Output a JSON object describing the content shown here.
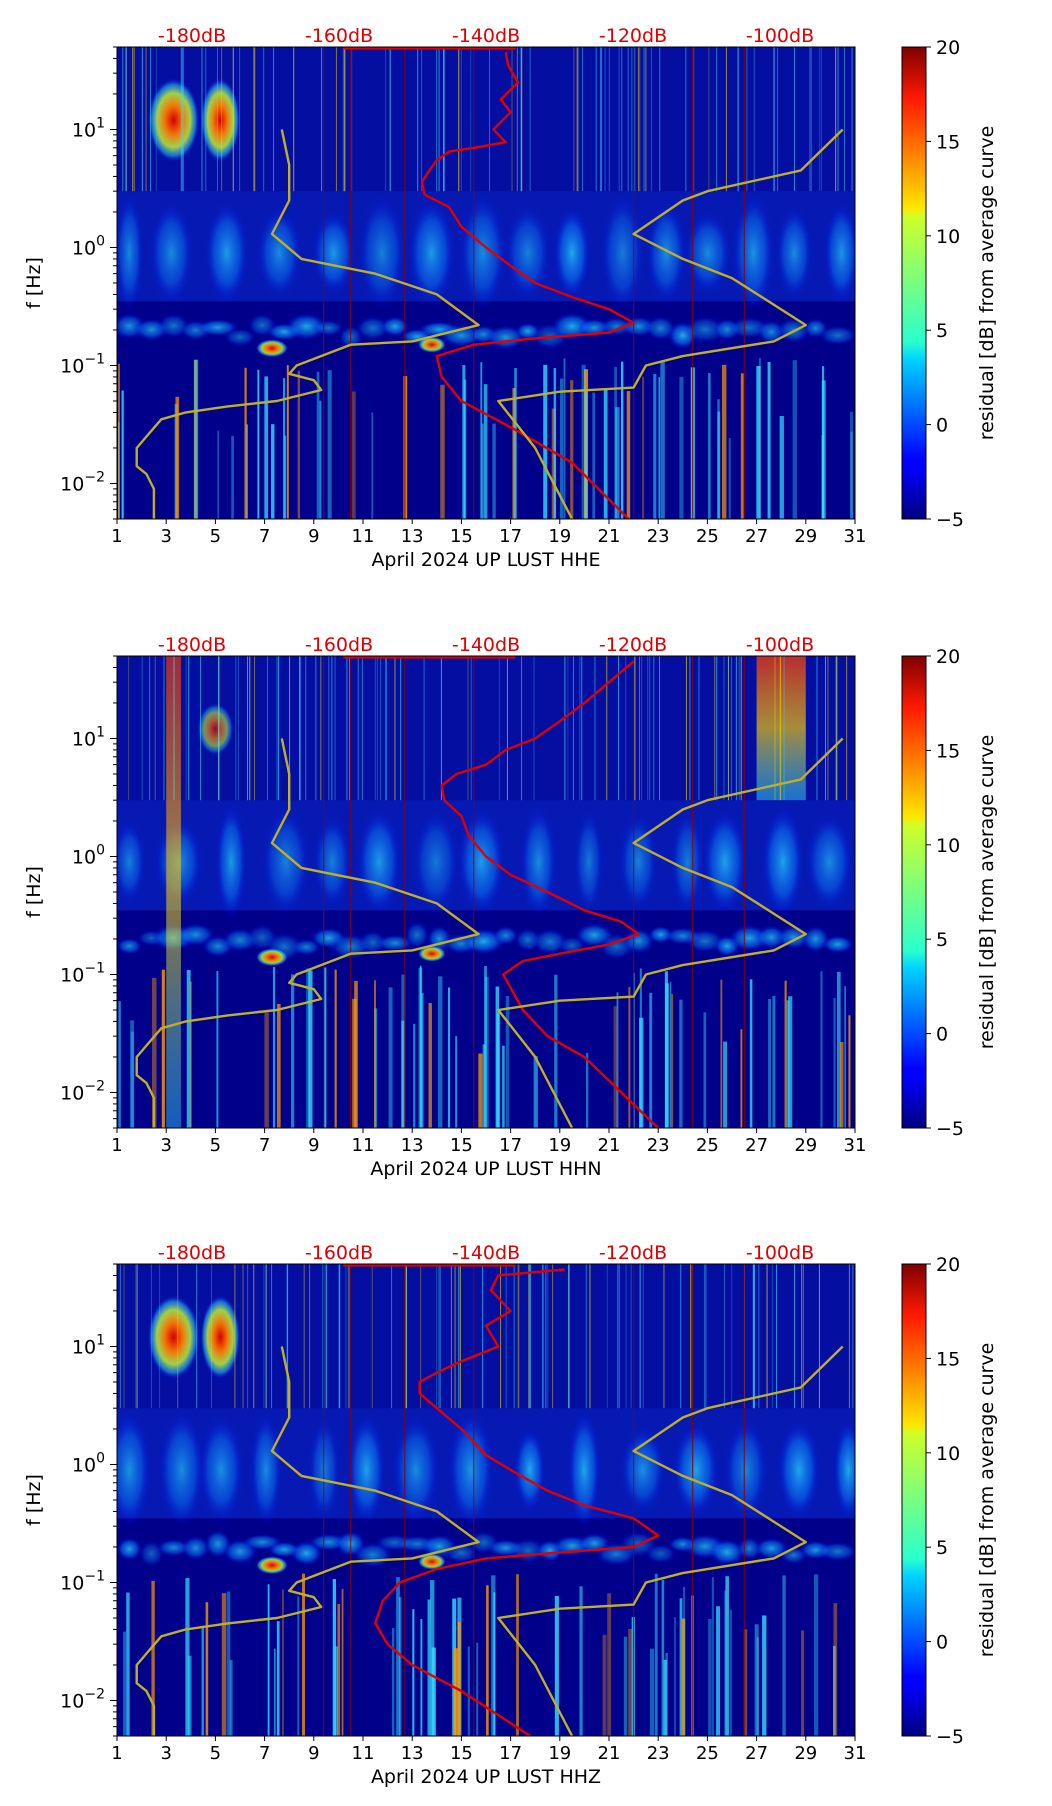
{
  "figure": {
    "colorbar_label": "residual [dB] from average curve",
    "ylabel": "f [Hz]"
  },
  "chart_data": [
    {
      "type": "heatmap",
      "xlabel": "April 2024 UP LUST  HHE",
      "ylabel": "f [Hz]",
      "x_ticks": [
        "1",
        "3",
        "5",
        "7",
        "9",
        "11",
        "13",
        "15",
        "17",
        "19",
        "21",
        "23",
        "25",
        "27",
        "29",
        "31"
      ],
      "xlim": [
        1,
        31
      ],
      "y_ticks": [
        {
          "base": "10",
          "exp": "1",
          "value": 10
        },
        {
          "base": "10",
          "exp": "0",
          "value": 1
        },
        {
          "base": "10",
          "exp": "−1",
          "value": 0.1
        },
        {
          "base": "10",
          "exp": "−2",
          "value": 0.01
        }
      ],
      "ylim": [
        0.005,
        50
      ],
      "y_scale": "log",
      "top_axis_labels": [
        "-180dB",
        "-160dB",
        "-140dB",
        "-120dB",
        "-100dB"
      ],
      "top_axis_color": "#e00000",
      "colorbar": {
        "ticks": [
          "−5",
          "0",
          "5",
          "10",
          "15",
          "20"
        ],
        "range": [
          -5,
          20
        ],
        "label": "residual [dB] from average curve",
        "colormap": "jet"
      },
      "series": [
        {
          "color": "#e00000",
          "points": [
            [
              16.8,
              45
            ],
            [
              16.9,
              35
            ],
            [
              17.3,
              25
            ],
            [
              16.6,
              18
            ],
            [
              17.0,
              14
            ],
            [
              16.3,
              10
            ],
            [
              16.8,
              7.8
            ],
            [
              15.5,
              7
            ],
            [
              14.5,
              6.5
            ],
            [
              14.0,
              5.5
            ],
            [
              13.7,
              4.5
            ],
            [
              13.4,
              3.6
            ],
            [
              13.5,
              2.8
            ],
            [
              14.5,
              2.2
            ],
            [
              15.0,
              1.5
            ],
            [
              16.0,
              1.0
            ],
            [
              17.0,
              0.7
            ],
            [
              18.0,
              0.5
            ],
            [
              19.5,
              0.38
            ],
            [
              21.0,
              0.3
            ],
            [
              22.0,
              0.23
            ],
            [
              21.0,
              0.19
            ],
            [
              18.0,
              0.17
            ],
            [
              15.5,
              0.15
            ],
            [
              14.0,
              0.12
            ],
            [
              14.2,
              0.08
            ],
            [
              15.0,
              0.05
            ],
            [
              17.0,
              0.03
            ],
            [
              19.5,
              0.015
            ],
            [
              21.8,
              0.005
            ]
          ]
        },
        {
          "color": "#bfb02a",
          "points": [
            [
              7.7,
              10
            ],
            [
              8.0,
              5
            ],
            [
              8.0,
              2.5
            ],
            [
              7.3,
              1.3
            ],
            [
              8.5,
              0.8
            ],
            [
              11.5,
              0.6
            ],
            [
              14.0,
              0.4
            ],
            [
              15.7,
              0.22
            ],
            [
              13.0,
              0.16
            ],
            [
              10.5,
              0.15
            ],
            [
              8.3,
              0.1
            ],
            [
              8.0,
              0.085
            ],
            [
              9.0,
              0.075
            ],
            [
              9.3,
              0.062
            ],
            [
              7.5,
              0.05
            ],
            [
              5.5,
              0.045
            ],
            [
              3.8,
              0.04
            ],
            [
              2.8,
              0.035
            ],
            [
              2.2,
              0.025
            ],
            [
              1.8,
              0.02
            ],
            [
              1.8,
              0.014
            ],
            [
              2.2,
              0.012
            ],
            [
              2.5,
              0.009
            ],
            [
              2.5,
              0.005
            ]
          ]
        },
        {
          "color": "#bfb02a",
          "points": [
            [
              30.5,
              10
            ],
            [
              28.8,
              4.5
            ],
            [
              25.0,
              3
            ],
            [
              24.0,
              2.5
            ],
            [
              22.0,
              1.3
            ],
            [
              24.0,
              0.8
            ],
            [
              26.0,
              0.55
            ],
            [
              29.0,
              0.22
            ],
            [
              27.7,
              0.16
            ],
            [
              24.0,
              0.12
            ],
            [
              22.5,
              0.1
            ],
            [
              22.0,
              0.065
            ],
            [
              19.0,
              0.06
            ],
            [
              16.5,
              0.05
            ],
            [
              18.0,
              0.02
            ],
            [
              19.5,
              0.005
            ]
          ]
        }
      ]
    },
    {
      "type": "heatmap",
      "xlabel": "April 2024 UP LUST  HHN",
      "ylabel": "f [Hz]",
      "x_ticks": [
        "1",
        "3",
        "5",
        "7",
        "9",
        "11",
        "13",
        "15",
        "17",
        "19",
        "21",
        "23",
        "25",
        "27",
        "29",
        "31"
      ],
      "xlim": [
        1,
        31
      ],
      "y_ticks": [
        {
          "base": "10",
          "exp": "1",
          "value": 10
        },
        {
          "base": "10",
          "exp": "0",
          "value": 1
        },
        {
          "base": "10",
          "exp": "−1",
          "value": 0.1
        },
        {
          "base": "10",
          "exp": "−2",
          "value": 0.01
        }
      ],
      "ylim": [
        0.005,
        50
      ],
      "y_scale": "log",
      "top_axis_labels": [
        "-180dB",
        "-160dB",
        "-140dB",
        "-120dB",
        "-100dB"
      ],
      "top_axis_color": "#e00000",
      "colorbar": {
        "ticks": [
          "−5",
          "0",
          "5",
          "10",
          "15",
          "20"
        ],
        "range": [
          -5,
          20
        ],
        "label": "residual [dB] from average curve",
        "colormap": "jet"
      },
      "series": [
        {
          "color": "#e00000",
          "points": [
            [
              22.0,
              45
            ],
            [
              21.0,
              30
            ],
            [
              20.0,
              20
            ],
            [
              19.0,
              14
            ],
            [
              18.0,
              10
            ],
            [
              16.8,
              8
            ],
            [
              16.0,
              6
            ],
            [
              14.8,
              5
            ],
            [
              14.2,
              4
            ],
            [
              14.3,
              3
            ],
            [
              15.0,
              2.2
            ],
            [
              15.3,
              1.5
            ],
            [
              16.0,
              1.0
            ],
            [
              17.0,
              0.7
            ],
            [
              18.5,
              0.5
            ],
            [
              20.0,
              0.35
            ],
            [
              21.5,
              0.28
            ],
            [
              22.2,
              0.22
            ],
            [
              21.0,
              0.18
            ],
            [
              19.0,
              0.15
            ],
            [
              17.5,
              0.13
            ],
            [
              16.7,
              0.1
            ],
            [
              17.5,
              0.05
            ],
            [
              18.5,
              0.03
            ],
            [
              20.0,
              0.02
            ],
            [
              23.0,
              0.005
            ]
          ]
        },
        {
          "color": "#bfb02a",
          "points": [
            [
              7.7,
              10
            ],
            [
              8.0,
              5
            ],
            [
              8.0,
              2.5
            ],
            [
              7.3,
              1.3
            ],
            [
              8.5,
              0.8
            ],
            [
              11.5,
              0.6
            ],
            [
              14.0,
              0.4
            ],
            [
              15.7,
              0.22
            ],
            [
              13.0,
              0.16
            ],
            [
              10.5,
              0.15
            ],
            [
              8.3,
              0.1
            ],
            [
              8.0,
              0.085
            ],
            [
              9.0,
              0.075
            ],
            [
              9.3,
              0.062
            ],
            [
              7.5,
              0.05
            ],
            [
              5.5,
              0.045
            ],
            [
              3.8,
              0.04
            ],
            [
              2.8,
              0.035
            ],
            [
              2.2,
              0.025
            ],
            [
              1.8,
              0.02
            ],
            [
              1.8,
              0.014
            ],
            [
              2.2,
              0.012
            ],
            [
              2.5,
              0.009
            ],
            [
              2.5,
              0.005
            ]
          ]
        },
        {
          "color": "#bfb02a",
          "points": [
            [
              30.5,
              10
            ],
            [
              28.8,
              4.5
            ],
            [
              25.0,
              3
            ],
            [
              24.0,
              2.5
            ],
            [
              22.0,
              1.3
            ],
            [
              24.0,
              0.8
            ],
            [
              26.0,
              0.55
            ],
            [
              29.0,
              0.22
            ],
            [
              27.7,
              0.16
            ],
            [
              24.0,
              0.12
            ],
            [
              22.5,
              0.1
            ],
            [
              22.0,
              0.065
            ],
            [
              19.0,
              0.06
            ],
            [
              16.5,
              0.05
            ],
            [
              18.0,
              0.02
            ],
            [
              19.5,
              0.005
            ]
          ]
        }
      ]
    },
    {
      "type": "heatmap",
      "xlabel": "April 2024 UP LUST  HHZ",
      "ylabel": "f [Hz]",
      "x_ticks": [
        "1",
        "3",
        "5",
        "7",
        "9",
        "11",
        "13",
        "15",
        "17",
        "19",
        "21",
        "23",
        "25",
        "27",
        "29",
        "31"
      ],
      "xlim": [
        1,
        31
      ],
      "y_ticks": [
        {
          "base": "10",
          "exp": "1",
          "value": 10
        },
        {
          "base": "10",
          "exp": "0",
          "value": 1
        },
        {
          "base": "10",
          "exp": "−1",
          "value": 0.1
        },
        {
          "base": "10",
          "exp": "−2",
          "value": 0.01
        }
      ],
      "ylim": [
        0.005,
        50
      ],
      "y_scale": "log",
      "top_axis_labels": [
        "-180dB",
        "-160dB",
        "-140dB",
        "-120dB",
        "-100dB"
      ],
      "top_axis_color": "#e00000",
      "colorbar": {
        "ticks": [
          "−5",
          "0",
          "5",
          "10",
          "15",
          "20"
        ],
        "range": [
          -5,
          20
        ],
        "label": "residual [dB] from average curve",
        "colormap": "jet"
      },
      "series": [
        {
          "color": "#e00000",
          "points": [
            [
              19.2,
              45
            ],
            [
              16.5,
              40
            ],
            [
              16.2,
              30
            ],
            [
              17.0,
              20
            ],
            [
              16.0,
              15
            ],
            [
              16.5,
              10
            ],
            [
              15.0,
              7.5
            ],
            [
              14.0,
              6
            ],
            [
              13.3,
              5
            ],
            [
              13.3,
              4
            ],
            [
              14.0,
              3
            ],
            [
              15.0,
              2.0
            ],
            [
              16.0,
              1.2
            ],
            [
              17.0,
              0.9
            ],
            [
              18.5,
              0.6
            ],
            [
              20.0,
              0.45
            ],
            [
              22.0,
              0.35
            ],
            [
              23.0,
              0.25
            ],
            [
              22.0,
              0.2
            ],
            [
              19.0,
              0.18
            ],
            [
              16.0,
              0.16
            ],
            [
              14.0,
              0.13
            ],
            [
              12.5,
              0.1
            ],
            [
              11.8,
              0.07
            ],
            [
              11.5,
              0.045
            ],
            [
              12.0,
              0.03
            ],
            [
              13.0,
              0.02
            ],
            [
              15.0,
              0.012
            ],
            [
              17.8,
              0.005
            ]
          ]
        },
        {
          "color": "#bfb02a",
          "points": [
            [
              7.7,
              10
            ],
            [
              8.0,
              5
            ],
            [
              8.0,
              2.5
            ],
            [
              7.3,
              1.3
            ],
            [
              8.5,
              0.8
            ],
            [
              11.5,
              0.6
            ],
            [
              14.0,
              0.4
            ],
            [
              15.7,
              0.22
            ],
            [
              13.0,
              0.16
            ],
            [
              10.5,
              0.15
            ],
            [
              8.3,
              0.1
            ],
            [
              8.0,
              0.085
            ],
            [
              9.0,
              0.075
            ],
            [
              9.3,
              0.062
            ],
            [
              7.5,
              0.05
            ],
            [
              5.5,
              0.045
            ],
            [
              3.8,
              0.04
            ],
            [
              2.8,
              0.035
            ],
            [
              2.2,
              0.025
            ],
            [
              1.8,
              0.02
            ],
            [
              1.8,
              0.014
            ],
            [
              2.2,
              0.012
            ],
            [
              2.5,
              0.009
            ],
            [
              2.5,
              0.005
            ]
          ]
        },
        {
          "color": "#bfb02a",
          "points": [
            [
              30.5,
              10
            ],
            [
              28.8,
              4.5
            ],
            [
              25.0,
              3
            ],
            [
              24.0,
              2.5
            ],
            [
              22.0,
              1.3
            ],
            [
              24.0,
              0.8
            ],
            [
              26.0,
              0.55
            ],
            [
              29.0,
              0.22
            ],
            [
              27.7,
              0.16
            ],
            [
              24.0,
              0.12
            ],
            [
              22.5,
              0.1
            ],
            [
              22.0,
              0.065
            ],
            [
              19.0,
              0.06
            ],
            [
              16.5,
              0.05
            ],
            [
              18.0,
              0.02
            ],
            [
              19.5,
              0.005
            ]
          ]
        }
      ]
    }
  ]
}
